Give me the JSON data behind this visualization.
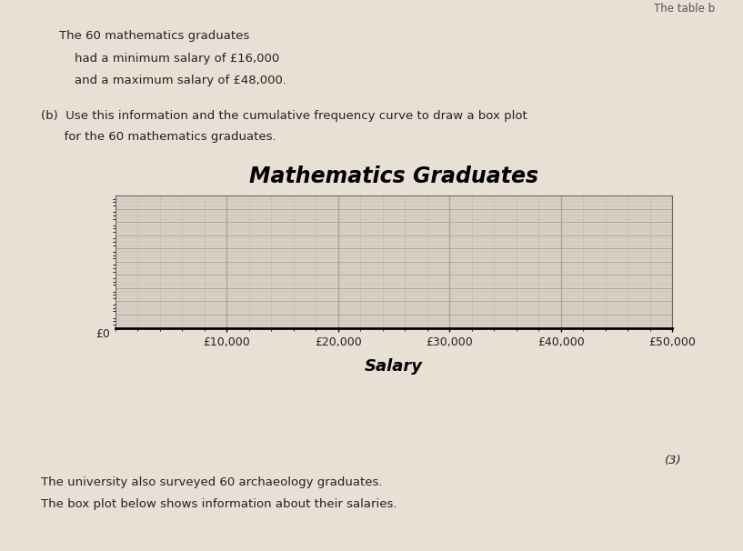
{
  "page_bg": "#e8e0d4",
  "axis_bg": "#d8d0c4",
  "title": "Mathematics Graduates",
  "xlabel": "Salary",
  "x_tick_labels": [
    "£10,000",
    "£20,000",
    "£30,000",
    "£40,000",
    "£50,000"
  ],
  "x_tick_values": [
    10000,
    20000,
    30000,
    40000,
    50000
  ],
  "x_label_outside": "£0",
  "xlim": [
    0,
    50000
  ],
  "text_line1": "The 60 mathematics graduates",
  "text_line2": "    had a minimum salary of £16,000",
  "text_line3": "    and a maximum salary of £48,000.",
  "part_b_line1": "(b)  Use this information and the cumulative frequency curve to draw a box plot",
  "part_b_line2": "      for the 60 mathematics graduates.",
  "bottom_text_line1": "The university also surveyed 60 archaeology graduates.",
  "bottom_text_line2": "The box plot below shows information about their salaries.",
  "mark_text": "(3)",
  "top_right_partial": "The table b",
  "grid_major_color": "#aaa090",
  "grid_minor_color": "#beb8ac",
  "title_fontsize": 17,
  "body_fontsize": 9.5,
  "tick_fontsize": 9,
  "minor_per_major": 5
}
